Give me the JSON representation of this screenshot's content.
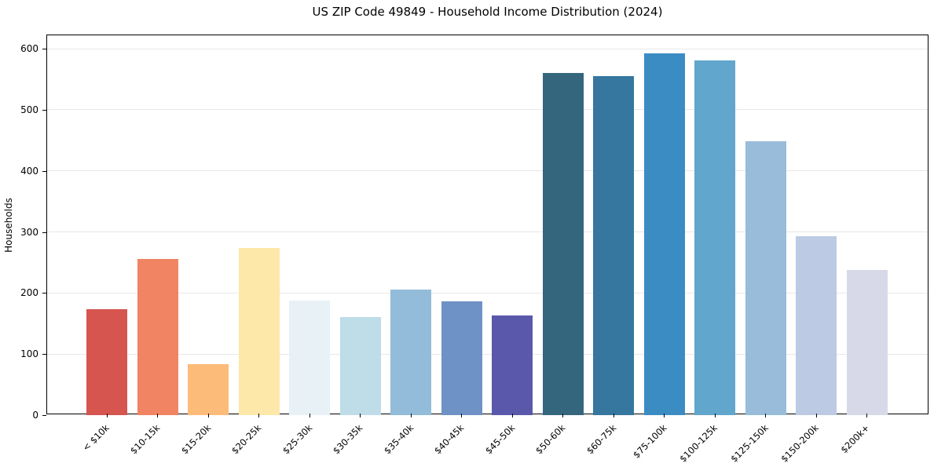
{
  "chart_data": {
    "type": "bar",
    "title": "US ZIP Code 49849 - Household Income Distribution (2024)",
    "xlabel": "",
    "ylabel": "Households",
    "categories": [
      "< $10k",
      "$10-15k",
      "$15-20k",
      "$20-25k",
      "$25-30k",
      "$30-35k",
      "$35-40k",
      "$40-45k",
      "$45-50k",
      "$50-60k",
      "$60-75k",
      "$75-100k",
      "$100-125k",
      "$125-150k",
      "$150-200k",
      "$200k+"
    ],
    "values": [
      174,
      256,
      83,
      274,
      188,
      161,
      206,
      186,
      163,
      560,
      555,
      592,
      581,
      448,
      293,
      238
    ],
    "bar_colors": [
      "#d6554f",
      "#f08463",
      "#fdbb7a",
      "#fde8a9",
      "#e7f1f6",
      "#bfdce9",
      "#92bcd9",
      "#6f92c6",
      "#5a58ab",
      "#34677e",
      "#35779e",
      "#3b8cc3",
      "#61a6cc",
      "#98bcda",
      "#bccbe3",
      "#d8d9e8"
    ],
    "yticks": [
      0,
      100,
      200,
      300,
      400,
      500,
      600
    ],
    "ylim": [
      0,
      622
    ],
    "grid": "horizontal",
    "legend": "none",
    "x_tick_rotation_deg": 45
  }
}
